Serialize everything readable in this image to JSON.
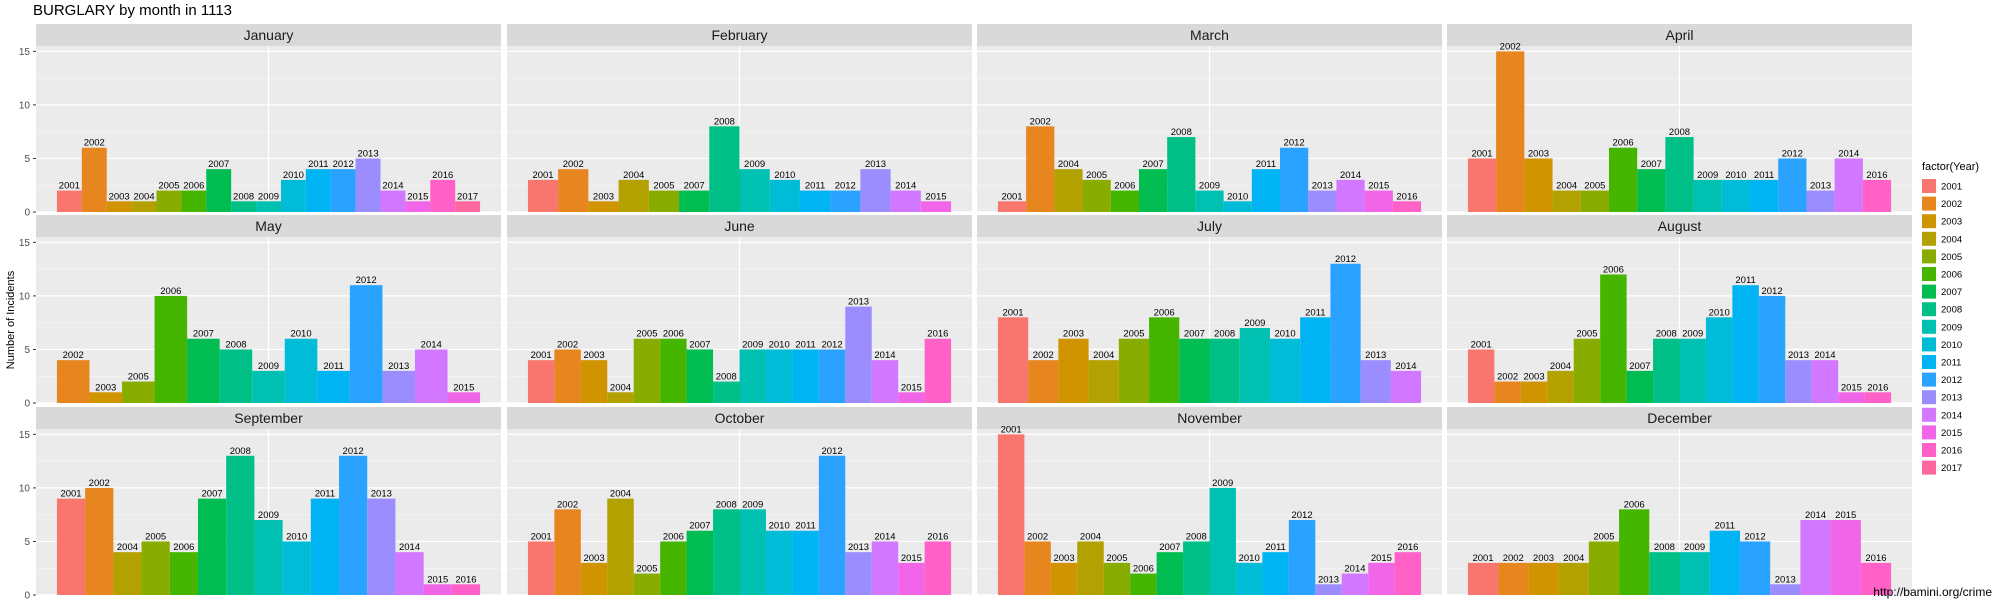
{
  "chart_title": "BURGLARY by month in 1113",
  "source_note": "http://bamini.org/crime",
  "chart_data": {
    "type": "bar",
    "title": "BURGLARY by month in 1113",
    "xlabel": "",
    "ylabel": "Number of Incidents",
    "ylim": [
      0,
      15.5
    ],
    "y_ticks": [
      0,
      5,
      10,
      15
    ],
    "grid": true,
    "facet_layout": "4 columns x 3 rows",
    "legend_title": "factor(Year)",
    "legend_position": "right",
    "legend": [
      {
        "year": "2001",
        "color": "#F8766D"
      },
      {
        "year": "2002",
        "color": "#E7851E"
      },
      {
        "year": "2003",
        "color": "#D09400"
      },
      {
        "year": "2004",
        "color": "#B2A100"
      },
      {
        "year": "2005",
        "color": "#89AC00"
      },
      {
        "year": "2006",
        "color": "#45B500"
      },
      {
        "year": "2007",
        "color": "#00BC51"
      },
      {
        "year": "2008",
        "color": "#00C087"
      },
      {
        "year": "2009",
        "color": "#00C0B2"
      },
      {
        "year": "2010",
        "color": "#00BCD6"
      },
      {
        "year": "2011",
        "color": "#00B3F2"
      },
      {
        "year": "2012",
        "color": "#29A3FF"
      },
      {
        "year": "2013",
        "color": "#9C8DFF"
      },
      {
        "year": "2014",
        "color": "#D277FF"
      },
      {
        "year": "2015",
        "color": "#F166E8"
      },
      {
        "year": "2016",
        "color": "#FF61C7"
      },
      {
        "year": "2017",
        "color": "#FF689F"
      }
    ],
    "panels": [
      {
        "month": "January",
        "bars": [
          {
            "year": "2001",
            "value": 2
          },
          {
            "year": "2002",
            "value": 6
          },
          {
            "year": "2003",
            "value": 1
          },
          {
            "year": "2004",
            "value": 1
          },
          {
            "year": "2005",
            "value": 2
          },
          {
            "year": "2006",
            "value": 2
          },
          {
            "year": "2007",
            "value": 4
          },
          {
            "year": "2008",
            "value": 1
          },
          {
            "year": "2009",
            "value": 1
          },
          {
            "year": "2010",
            "value": 3
          },
          {
            "year": "2011",
            "value": 4
          },
          {
            "year": "2012",
            "value": 4
          },
          {
            "year": "2013",
            "value": 5
          },
          {
            "year": "2014",
            "value": 2
          },
          {
            "year": "2015",
            "value": 1
          },
          {
            "year": "2016",
            "value": 3
          },
          {
            "year": "2017",
            "value": 1
          }
        ]
      },
      {
        "month": "February",
        "bars": [
          {
            "year": "2001",
            "value": 3
          },
          {
            "year": "2002",
            "value": 4
          },
          {
            "year": "2003",
            "value": 1
          },
          {
            "year": "2004",
            "value": 3
          },
          {
            "year": "2005",
            "value": 2
          },
          {
            "year": "2007",
            "value": 2
          },
          {
            "year": "2008",
            "value": 8
          },
          {
            "year": "2009",
            "value": 4
          },
          {
            "year": "2010",
            "value": 3
          },
          {
            "year": "2011",
            "value": 2
          },
          {
            "year": "2012",
            "value": 2
          },
          {
            "year": "2013",
            "value": 4
          },
          {
            "year": "2014",
            "value": 2
          },
          {
            "year": "2015",
            "value": 1
          }
        ]
      },
      {
        "month": "March",
        "bars": [
          {
            "year": "2001",
            "value": 1
          },
          {
            "year": "2002",
            "value": 8
          },
          {
            "year": "2004",
            "value": 4
          },
          {
            "year": "2005",
            "value": 3
          },
          {
            "year": "2006",
            "value": 2
          },
          {
            "year": "2007",
            "value": 4
          },
          {
            "year": "2008",
            "value": 7
          },
          {
            "year": "2009",
            "value": 2
          },
          {
            "year": "2010",
            "value": 1
          },
          {
            "year": "2011",
            "value": 4
          },
          {
            "year": "2012",
            "value": 6
          },
          {
            "year": "2013",
            "value": 2
          },
          {
            "year": "2014",
            "value": 3
          },
          {
            "year": "2015",
            "value": 2
          },
          {
            "year": "2016",
            "value": 1
          }
        ]
      },
      {
        "month": "April",
        "bars": [
          {
            "year": "2001",
            "value": 5
          },
          {
            "year": "2002",
            "value": 15
          },
          {
            "year": "2003",
            "value": 5
          },
          {
            "year": "2004",
            "value": 2
          },
          {
            "year": "2005",
            "value": 2
          },
          {
            "year": "2006",
            "value": 6
          },
          {
            "year": "2007",
            "value": 4
          },
          {
            "year": "2008",
            "value": 7
          },
          {
            "year": "2009",
            "value": 3
          },
          {
            "year": "2010",
            "value": 3
          },
          {
            "year": "2011",
            "value": 3
          },
          {
            "year": "2012",
            "value": 5
          },
          {
            "year": "2013",
            "value": 2
          },
          {
            "year": "2014",
            "value": 5
          },
          {
            "year": "2016",
            "value": 3
          }
        ]
      },
      {
        "month": "May",
        "bars": [
          {
            "year": "2002",
            "value": 4
          },
          {
            "year": "2003",
            "value": 1
          },
          {
            "year": "2005",
            "value": 2
          },
          {
            "year": "2006",
            "value": 10
          },
          {
            "year": "2007",
            "value": 6
          },
          {
            "year": "2008",
            "value": 5
          },
          {
            "year": "2009",
            "value": 3
          },
          {
            "year": "2010",
            "value": 6
          },
          {
            "year": "2011",
            "value": 3
          },
          {
            "year": "2012",
            "value": 11
          },
          {
            "year": "2013",
            "value": 3
          },
          {
            "year": "2014",
            "value": 5
          },
          {
            "year": "2015",
            "value": 1
          }
        ]
      },
      {
        "month": "June",
        "bars": [
          {
            "year": "2001",
            "value": 4
          },
          {
            "year": "2002",
            "value": 5
          },
          {
            "year": "2003",
            "value": 4
          },
          {
            "year": "2004",
            "value": 1
          },
          {
            "year": "2005",
            "value": 6
          },
          {
            "year": "2006",
            "value": 6
          },
          {
            "year": "2007",
            "value": 5
          },
          {
            "year": "2008",
            "value": 2
          },
          {
            "year": "2009",
            "value": 5
          },
          {
            "year": "2010",
            "value": 5
          },
          {
            "year": "2011",
            "value": 5
          },
          {
            "year": "2012",
            "value": 5
          },
          {
            "year": "2013",
            "value": 9
          },
          {
            "year": "2014",
            "value": 4
          },
          {
            "year": "2015",
            "value": 1
          },
          {
            "year": "2016",
            "value": 6
          }
        ]
      },
      {
        "month": "July",
        "bars": [
          {
            "year": "2001",
            "value": 8
          },
          {
            "year": "2002",
            "value": 4
          },
          {
            "year": "2003",
            "value": 6
          },
          {
            "year": "2004",
            "value": 4
          },
          {
            "year": "2005",
            "value": 6
          },
          {
            "year": "2006",
            "value": 8
          },
          {
            "year": "2007",
            "value": 6
          },
          {
            "year": "2008",
            "value": 6
          },
          {
            "year": "2009",
            "value": 7
          },
          {
            "year": "2010",
            "value": 6
          },
          {
            "year": "2011",
            "value": 8
          },
          {
            "year": "2012",
            "value": 13
          },
          {
            "year": "2013",
            "value": 4
          },
          {
            "year": "2014",
            "value": 3
          }
        ]
      },
      {
        "month": "August",
        "bars": [
          {
            "year": "2001",
            "value": 5
          },
          {
            "year": "2002",
            "value": 2
          },
          {
            "year": "2003",
            "value": 2
          },
          {
            "year": "2004",
            "value": 3
          },
          {
            "year": "2005",
            "value": 6
          },
          {
            "year": "2006",
            "value": 12
          },
          {
            "year": "2007",
            "value": 3
          },
          {
            "year": "2008",
            "value": 6
          },
          {
            "year": "2009",
            "value": 6
          },
          {
            "year": "2010",
            "value": 8
          },
          {
            "year": "2011",
            "value": 11
          },
          {
            "year": "2012",
            "value": 10
          },
          {
            "year": "2013",
            "value": 4
          },
          {
            "year": "2014",
            "value": 4
          },
          {
            "year": "2015",
            "value": 1
          },
          {
            "year": "2016",
            "value": 1
          }
        ]
      },
      {
        "month": "September",
        "bars": [
          {
            "year": "2001",
            "value": 9
          },
          {
            "year": "2002",
            "value": 10
          },
          {
            "year": "2004",
            "value": 4
          },
          {
            "year": "2005",
            "value": 5
          },
          {
            "year": "2006",
            "value": 4
          },
          {
            "year": "2007",
            "value": 9
          },
          {
            "year": "2008",
            "value": 13
          },
          {
            "year": "2009",
            "value": 7
          },
          {
            "year": "2010",
            "value": 5
          },
          {
            "year": "2011",
            "value": 9
          },
          {
            "year": "2012",
            "value": 13
          },
          {
            "year": "2013",
            "value": 9
          },
          {
            "year": "2014",
            "value": 4
          },
          {
            "year": "2015",
            "value": 1
          },
          {
            "year": "2016",
            "value": 1
          }
        ]
      },
      {
        "month": "October",
        "bars": [
          {
            "year": "2001",
            "value": 5
          },
          {
            "year": "2002",
            "value": 8
          },
          {
            "year": "2003",
            "value": 3
          },
          {
            "year": "2004",
            "value": 9
          },
          {
            "year": "2005",
            "value": 2
          },
          {
            "year": "2006",
            "value": 5
          },
          {
            "year": "2007",
            "value": 6
          },
          {
            "year": "2008",
            "value": 8
          },
          {
            "year": "2009",
            "value": 8
          },
          {
            "year": "2010",
            "value": 6
          },
          {
            "year": "2011",
            "value": 6
          },
          {
            "year": "2012",
            "value": 13
          },
          {
            "year": "2013",
            "value": 4
          },
          {
            "year": "2014",
            "value": 5
          },
          {
            "year": "2015",
            "value": 3
          },
          {
            "year": "2016",
            "value": 5
          }
        ]
      },
      {
        "month": "November",
        "bars": [
          {
            "year": "2001",
            "value": 15
          },
          {
            "year": "2002",
            "value": 5
          },
          {
            "year": "2003",
            "value": 3
          },
          {
            "year": "2004",
            "value": 5
          },
          {
            "year": "2005",
            "value": 3
          },
          {
            "year": "2006",
            "value": 2
          },
          {
            "year": "2007",
            "value": 4
          },
          {
            "year": "2008",
            "value": 5
          },
          {
            "year": "2009",
            "value": 10
          },
          {
            "year": "2010",
            "value": 3
          },
          {
            "year": "2011",
            "value": 4
          },
          {
            "year": "2012",
            "value": 7
          },
          {
            "year": "2013",
            "value": 1
          },
          {
            "year": "2014",
            "value": 2
          },
          {
            "year": "2015",
            "value": 3
          },
          {
            "year": "2016",
            "value": 4
          }
        ]
      },
      {
        "month": "December",
        "bars": [
          {
            "year": "2001",
            "value": 3
          },
          {
            "year": "2002",
            "value": 3
          },
          {
            "year": "2003",
            "value": 3
          },
          {
            "year": "2004",
            "value": 3
          },
          {
            "year": "2005",
            "value": 5
          },
          {
            "year": "2006",
            "value": 8
          },
          {
            "year": "2008",
            "value": 4
          },
          {
            "year": "2009",
            "value": 4
          },
          {
            "year": "2011",
            "value": 6
          },
          {
            "year": "2012",
            "value": 5
          },
          {
            "year": "2013",
            "value": 1
          },
          {
            "year": "2014",
            "value": 7
          },
          {
            "year": "2015",
            "value": 7
          },
          {
            "year": "2016",
            "value": 3
          }
        ]
      }
    ]
  }
}
